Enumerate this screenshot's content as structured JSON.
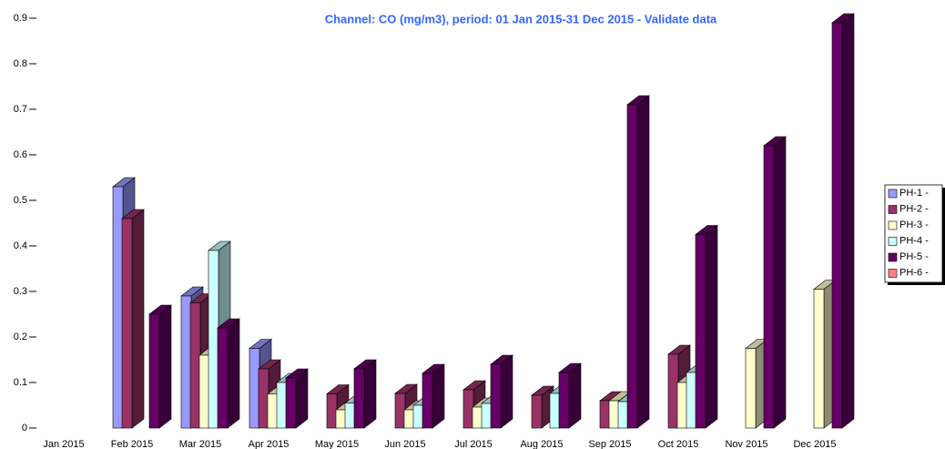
{
  "chart_data": {
    "type": "bar3d",
    "title": "Channel: CO (mg/m3), period: 01 Jan 2015-31 Dec 2015 - Validate data",
    "categories": [
      "Jan 2015",
      "Feb 2015",
      "Mar 2015",
      "Apr 2015",
      "May 2015",
      "Jun 2015",
      "Jul 2015",
      "Aug 2015",
      "Sep 2015",
      "Oct 2015",
      "Nov 2015",
      "Dec 2015"
    ],
    "series": [
      {
        "name": "PH-1 -",
        "color": "#9999ff",
        "values": [
          null,
          0.53,
          0.29,
          0.175,
          null,
          null,
          null,
          null,
          null,
          null,
          null,
          null
        ]
      },
      {
        "name": "PH-2 -",
        "color": "#993366",
        "values": [
          null,
          0.46,
          0.275,
          0.13,
          0.075,
          0.076,
          0.084,
          0.072,
          0.06,
          0.162,
          null,
          null
        ]
      },
      {
        "name": "PH-3 -",
        "color": "#ffffcc",
        "values": [
          null,
          null,
          0.16,
          0.075,
          0.04,
          0.04,
          0.046,
          null,
          0.06,
          0.1,
          0.175,
          0.305
        ]
      },
      {
        "name": "PH-4 -",
        "color": "#ccffff",
        "values": [
          null,
          null,
          0.39,
          0.1,
          0.055,
          0.05,
          0.054,
          0.076,
          0.058,
          0.122,
          null,
          null
        ]
      },
      {
        "name": "PH-5 -",
        "color": "#660066",
        "values": [
          null,
          0.25,
          0.22,
          0.11,
          0.13,
          0.12,
          0.14,
          0.122,
          0.71,
          0.425,
          0.62,
          0.89
        ]
      },
      {
        "name": "PH-6 -",
        "color": "#ff8080",
        "values": [
          null,
          null,
          null,
          null,
          null,
          null,
          null,
          null,
          null,
          null,
          null,
          null
        ]
      }
    ],
    "ylim": [
      0,
      0.9
    ],
    "yticks": [
      0,
      0.1,
      0.2,
      0.3,
      0.4,
      0.5,
      0.6,
      0.7,
      0.8,
      0.9
    ],
    "legend": "right"
  }
}
